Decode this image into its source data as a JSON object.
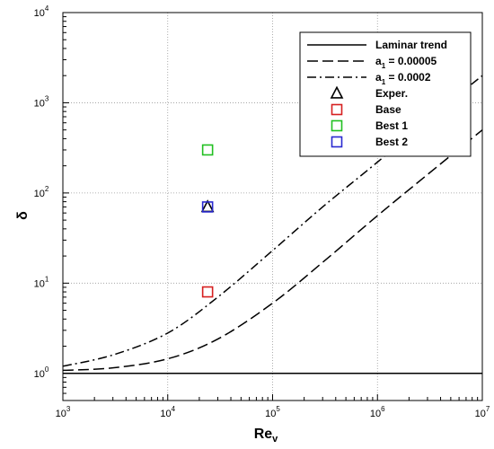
{
  "chart_data": {
    "type": "line",
    "xscale": "log",
    "yscale": "log",
    "xlim": [
      1000,
      10000000
    ],
    "ylim": [
      0.5,
      10000
    ],
    "grid": true,
    "legend_position": "top-right",
    "xlabel": {
      "main": "Re",
      "sub": "v"
    },
    "ylabel": "δ",
    "x_ticks": [
      {
        "value": 1000,
        "base": "10",
        "exp": "3"
      },
      {
        "value": 10000,
        "base": "10",
        "exp": "4"
      },
      {
        "value": 100000,
        "base": "10",
        "exp": "5"
      },
      {
        "value": 1000000,
        "base": "10",
        "exp": "6"
      },
      {
        "value": 10000000,
        "base": "10",
        "exp": "7"
      }
    ],
    "y_ticks": [
      {
        "value": 1,
        "base": "10",
        "exp": "0"
      },
      {
        "value": 10,
        "base": "10",
        "exp": "1"
      },
      {
        "value": 100,
        "base": "10",
        "exp": "2"
      },
      {
        "value": 1000,
        "base": "10",
        "exp": "3"
      },
      {
        "value": 10000,
        "base": "10",
        "exp": "4"
      }
    ],
    "series": [
      {
        "name": "Laminar trend",
        "kind": "line",
        "dash": "solid",
        "color": "#000000",
        "points": [
          [
            1000,
            1.0
          ],
          [
            10000000,
            1.0
          ]
        ]
      },
      {
        "name": "a₁ = 0.00005",
        "legend_main": "a",
        "legend_sub": "1",
        "legend_rest": " = 0.00005",
        "kind": "line",
        "dash": "dashed",
        "color": "#000000",
        "points": [
          [
            1000,
            1.08
          ],
          [
            3000,
            1.15
          ],
          [
            10000,
            1.45
          ],
          [
            30000,
            2.4
          ],
          [
            100000,
            6.0
          ],
          [
            300000,
            17
          ],
          [
            1000000,
            56
          ],
          [
            3000000,
            160
          ],
          [
            10000000,
            500
          ]
        ]
      },
      {
        "name": "a₁ = 0.0002",
        "legend_main": "a",
        "legend_sub": "1",
        "legend_rest": " = 0.0002",
        "kind": "line",
        "dash": "dashdot",
        "color": "#000000",
        "points": [
          [
            1000,
            1.2
          ],
          [
            3000,
            1.6
          ],
          [
            10000,
            2.8
          ],
          [
            30000,
            7.0
          ],
          [
            100000,
            23
          ],
          [
            300000,
            70
          ],
          [
            1000000,
            220
          ],
          [
            3000000,
            650
          ],
          [
            10000000,
            2000
          ]
        ]
      },
      {
        "name": "Exper.",
        "kind": "marker",
        "marker": "triangle",
        "color": "#000000",
        "points": [
          [
            24000,
            70
          ]
        ]
      },
      {
        "name": "Base",
        "kind": "marker",
        "marker": "square",
        "color": "#d62020",
        "points": [
          [
            24000,
            8
          ]
        ]
      },
      {
        "name": "Best 1",
        "kind": "marker",
        "marker": "square",
        "color": "#22c022",
        "points": [
          [
            24000,
            300
          ]
        ]
      },
      {
        "name": "Best 2",
        "kind": "marker",
        "marker": "square",
        "color": "#2a2ad0",
        "points": [
          [
            24000,
            70
          ]
        ]
      }
    ]
  }
}
